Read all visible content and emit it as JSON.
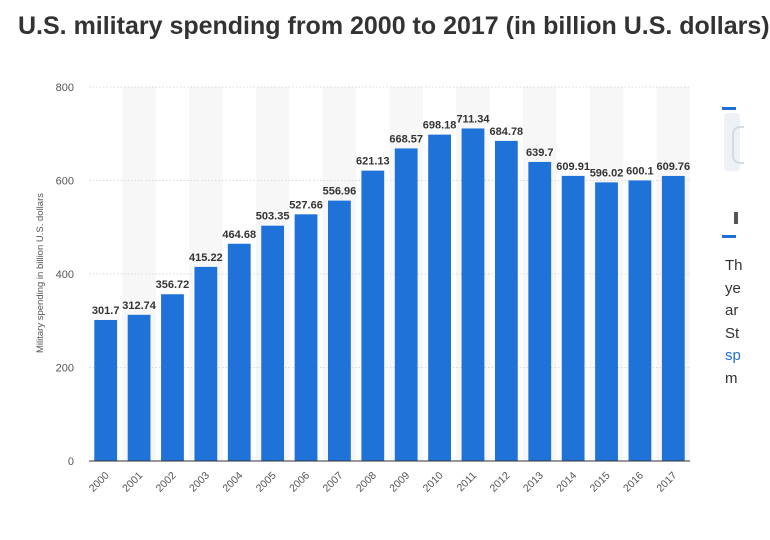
{
  "title": "U.S. military spending from 2000 to 2017 (in billion U.S. dollars)",
  "sidebar": {
    "text_lines": [
      "Th",
      "ye",
      "ar",
      "St",
      "sp",
      "m"
    ]
  },
  "colors": {
    "bar": "#1f72d8",
    "grid": "#d9d9d9",
    "band": "#f7f7f7",
    "axis_text": "#555555",
    "label_text": "#333333",
    "link": "#1c6fd9"
  },
  "chart_data": {
    "type": "bar",
    "title": "U.S. military spending from 2000 to 2017 (in billion U.S. dollars)",
    "xlabel": "",
    "ylabel": "Military spending in billion U.S. dollars",
    "ylim": [
      0,
      800
    ],
    "yticks": [
      0,
      200,
      400,
      600,
      800
    ],
    "categories": [
      "2000",
      "2001",
      "2002",
      "2003",
      "2004",
      "2005",
      "2006",
      "2007",
      "2008",
      "2009",
      "2010",
      "2011",
      "2012",
      "2013",
      "2014",
      "2015",
      "2016",
      "2017"
    ],
    "values": [
      301.7,
      312.74,
      356.72,
      415.22,
      464.68,
      503.35,
      527.66,
      556.96,
      621.13,
      668.57,
      698.18,
      711.34,
      684.78,
      639.7,
      609.91,
      596.02,
      600.1,
      609.76
    ],
    "value_labels": [
      "301.7",
      "312.74",
      "356.72",
      "415.22",
      "464.68",
      "503.35",
      "527.66",
      "556.96",
      "621.13",
      "668.57",
      "698.18",
      "711.34",
      "684.78",
      "639.7",
      "609.91",
      "596.02",
      "600.1",
      "609.76"
    ],
    "grid": true
  }
}
